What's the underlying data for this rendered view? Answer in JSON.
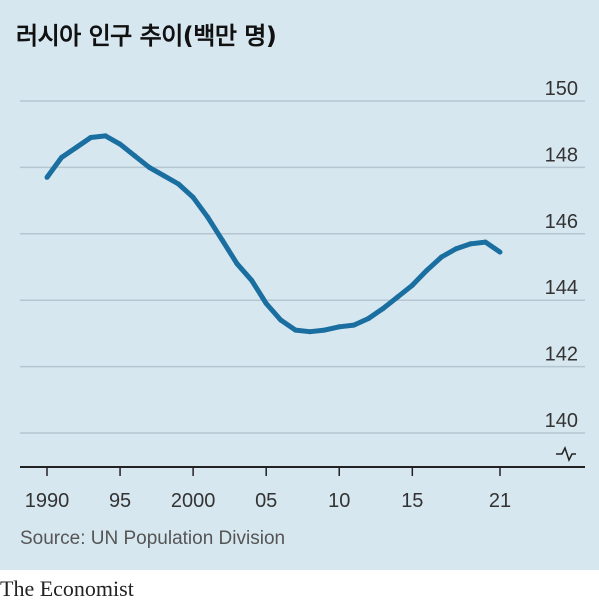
{
  "title": "러시아 인구 추이(백만 명)",
  "source": "Source: UN Population Division",
  "publisher": "The Economist",
  "colors": {
    "background": "#d7e7f0",
    "line": "#1a6fa0",
    "grid": "#b5c6d0",
    "axis": "#222222"
  },
  "chart_data": {
    "type": "line",
    "title": "러시아 인구 추이(백만 명)",
    "xlabel": "",
    "ylabel": "",
    "xlim": [
      1990,
      2021
    ],
    "ylim": [
      140,
      150
    ],
    "y_axis_break": true,
    "grid": true,
    "x_ticks": [
      {
        "value": 1990,
        "label": "1990"
      },
      {
        "value": 1995,
        "label": "95"
      },
      {
        "value": 2000,
        "label": "2000"
      },
      {
        "value": 2005,
        "label": "05"
      },
      {
        "value": 2010,
        "label": "10"
      },
      {
        "value": 2015,
        "label": "15"
      },
      {
        "value": 2021,
        "label": "21"
      }
    ],
    "y_ticks": [
      {
        "value": 150,
        "label": "150"
      },
      {
        "value": 148,
        "label": "148"
      },
      {
        "value": 146,
        "label": "146"
      },
      {
        "value": 144,
        "label": "144"
      },
      {
        "value": 142,
        "label": "142"
      },
      {
        "value": 140,
        "label": "140"
      }
    ],
    "series": [
      {
        "x": [
          1990,
          1991,
          1992,
          1993,
          1994,
          1995,
          1996,
          1997,
          1998,
          1999,
          2000,
          2001,
          2002,
          2003,
          2004,
          2005,
          2006,
          2007,
          2008,
          2009,
          2010,
          2011,
          2012,
          2013,
          2014,
          2015,
          2016,
          2017,
          2018,
          2019,
          2020,
          2021
        ],
        "values": [
          147.7,
          148.3,
          148.6,
          148.9,
          148.95,
          148.7,
          148.35,
          148.0,
          147.75,
          147.5,
          147.1,
          146.5,
          145.8,
          145.1,
          144.6,
          143.9,
          143.4,
          143.1,
          143.05,
          143.1,
          143.2,
          143.25,
          143.45,
          143.75,
          144.1,
          144.45,
          144.9,
          145.3,
          145.55,
          145.7,
          145.75,
          145.45
        ]
      }
    ]
  }
}
